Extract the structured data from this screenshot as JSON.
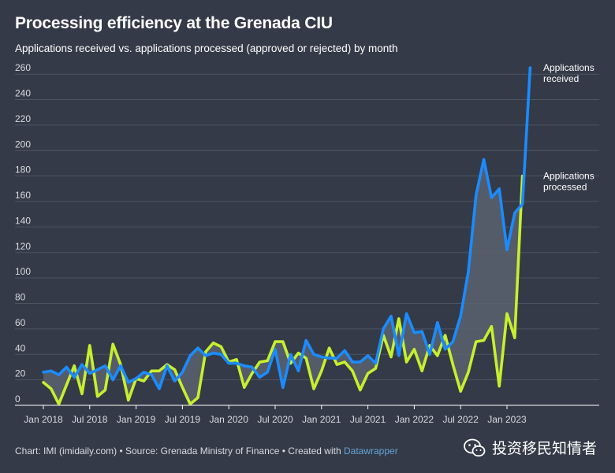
{
  "title": "Processing efficiency at the Grenada CIU",
  "subtitle": "Applications received vs. applications processed (approved or rejected) by month",
  "footer": {
    "prefix": "Chart: IMI (imidaily.com) • Source: Grenada Ministry of Finance • Created with ",
    "link": "Datawrapper"
  },
  "watermark": "投资移民知情者",
  "colors": {
    "background": "#343a47",
    "received": "#1a8cff",
    "processed": "#c6f02e",
    "gap_fill": "#5a6270",
    "grid": "#4d5462"
  },
  "chart_data": {
    "type": "line",
    "title": "Processing efficiency at the Grenada CIU",
    "subtitle": "Applications received vs. applications processed (approved or rejected) by month",
    "x_start": "2018-01",
    "x_ticks": [
      "Jan 2018",
      "Jul 2018",
      "Jan 2019",
      "Jul 2019",
      "Jan 2020",
      "Jul 2020",
      "Jan 2021",
      "Jul 2021",
      "Jan 2022",
      "Jul 2022",
      "Jan 2023"
    ],
    "y_ticks": [
      0,
      20,
      40,
      60,
      80,
      100,
      120,
      140,
      160,
      180,
      200,
      220,
      240,
      260
    ],
    "ylim": [
      0,
      270
    ],
    "grid": true,
    "series": [
      {
        "name": "Applications received",
        "label_lines": [
          "Applications",
          "received"
        ],
        "values": [
          26,
          27,
          24,
          30,
          22,
          32,
          25,
          28,
          31,
          20,
          31,
          18,
          21,
          26,
          24,
          13,
          31,
          19,
          26,
          39,
          45,
          39,
          41,
          40,
          33,
          33,
          31,
          30,
          22,
          26,
          44,
          14,
          40,
          27,
          51,
          40,
          38,
          37,
          37,
          43,
          34,
          34,
          39,
          33,
          60,
          70,
          39,
          72,
          57,
          58,
          40,
          65,
          44,
          50,
          70,
          105,
          165,
          193,
          163,
          170,
          122,
          151,
          158,
          265
        ]
      },
      {
        "name": "Applications processed",
        "label_lines": [
          "Applications",
          "processed"
        ],
        "values": [
          18,
          13,
          1,
          16,
          31,
          9,
          47,
          7,
          12,
          48,
          32,
          4,
          21,
          19,
          27,
          27,
          32,
          28,
          14,
          1,
          6,
          42,
          49,
          46,
          34,
          36,
          14,
          25,
          34,
          35,
          50,
          50,
          33,
          41,
          37,
          13,
          27,
          45,
          32,
          34,
          27,
          12,
          25,
          29,
          55,
          38,
          68,
          34,
          44,
          27,
          47,
          39,
          55,
          32,
          11,
          26,
          50,
          51,
          62,
          15,
          72,
          53,
          180
        ]
      }
    ]
  }
}
